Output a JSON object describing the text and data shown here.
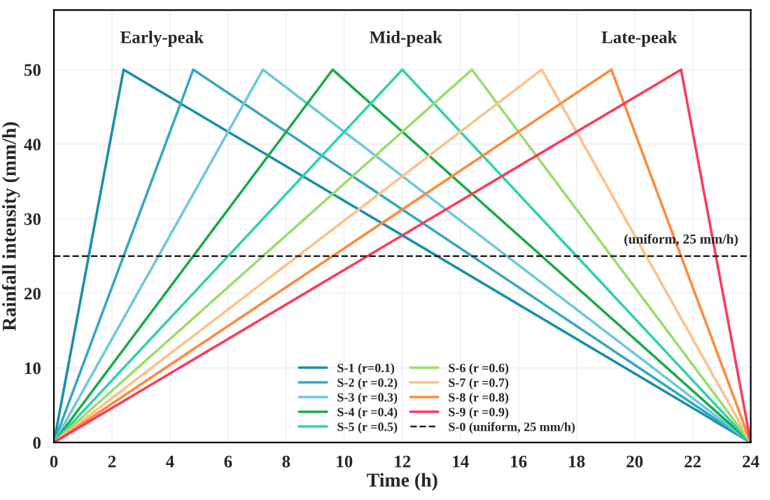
{
  "chart_data": {
    "type": "line",
    "xlabel": "Time (h)",
    "ylabel": "Rainfall intensity (mm/h)",
    "xlim": [
      0,
      24
    ],
    "ylim": [
      0,
      58
    ],
    "xticks": [
      0,
      2,
      4,
      6,
      8,
      10,
      12,
      14,
      16,
      18,
      20,
      22,
      24
    ],
    "yticks": [
      0,
      10,
      20,
      30,
      40,
      50
    ],
    "grid": true,
    "legend": "bottom",
    "marker": "none",
    "series": [
      {
        "name": "S-1 (r=0.1)",
        "color": "#1a8fa8",
        "x": [
          0,
          2.4,
          24
        ],
        "values": [
          0,
          50,
          0
        ]
      },
      {
        "name": "S-2 (r =0.2)",
        "color": "#35a8c4",
        "x": [
          0,
          4.8,
          24
        ],
        "values": [
          0,
          50,
          0
        ]
      },
      {
        "name": "S-3 (r =0.3)",
        "color": "#6ec9d9",
        "x": [
          0,
          7.2,
          24
        ],
        "values": [
          0,
          50,
          0
        ]
      },
      {
        "name": "S-4 (r =0.4)",
        "color": "#1aab4b",
        "x": [
          0,
          9.6,
          24
        ],
        "values": [
          0,
          50,
          0
        ]
      },
      {
        "name": "S-5 (r =0.5)",
        "color": "#30d3aa",
        "x": [
          0,
          12,
          24
        ],
        "values": [
          0,
          50,
          0
        ]
      },
      {
        "name": "S-6 (r =0.6)",
        "color": "#9ddb6e",
        "x": [
          0,
          14.4,
          24
        ],
        "values": [
          0,
          50,
          0
        ]
      },
      {
        "name": "S-7 (r =0.7)",
        "color": "#ffc08a",
        "x": [
          0,
          16.8,
          24
        ],
        "values": [
          0,
          50,
          0
        ]
      },
      {
        "name": "S-8 (r =0.8)",
        "color": "#ff8a3d",
        "x": [
          0,
          19.2,
          24
        ],
        "values": [
          0,
          50,
          0
        ]
      },
      {
        "name": "S-9 (r =0.9)",
        "color": "#ff3a5a",
        "x": [
          0,
          21.6,
          24
        ],
        "values": [
          0,
          50,
          0
        ]
      },
      {
        "name": "S-0 (uniform, 25 mm/h)",
        "color": "#222222",
        "x": [
          0,
          24
        ],
        "values": [
          25,
          25
        ],
        "line_style": "dashed"
      }
    ],
    "annotations": [
      "Early-peak",
      "Mid-peak",
      "Late-peak",
      {
        "text": "(uniform, 25 mm/h)",
        "x": 21.6,
        "y": 26.3
      }
    ]
  }
}
